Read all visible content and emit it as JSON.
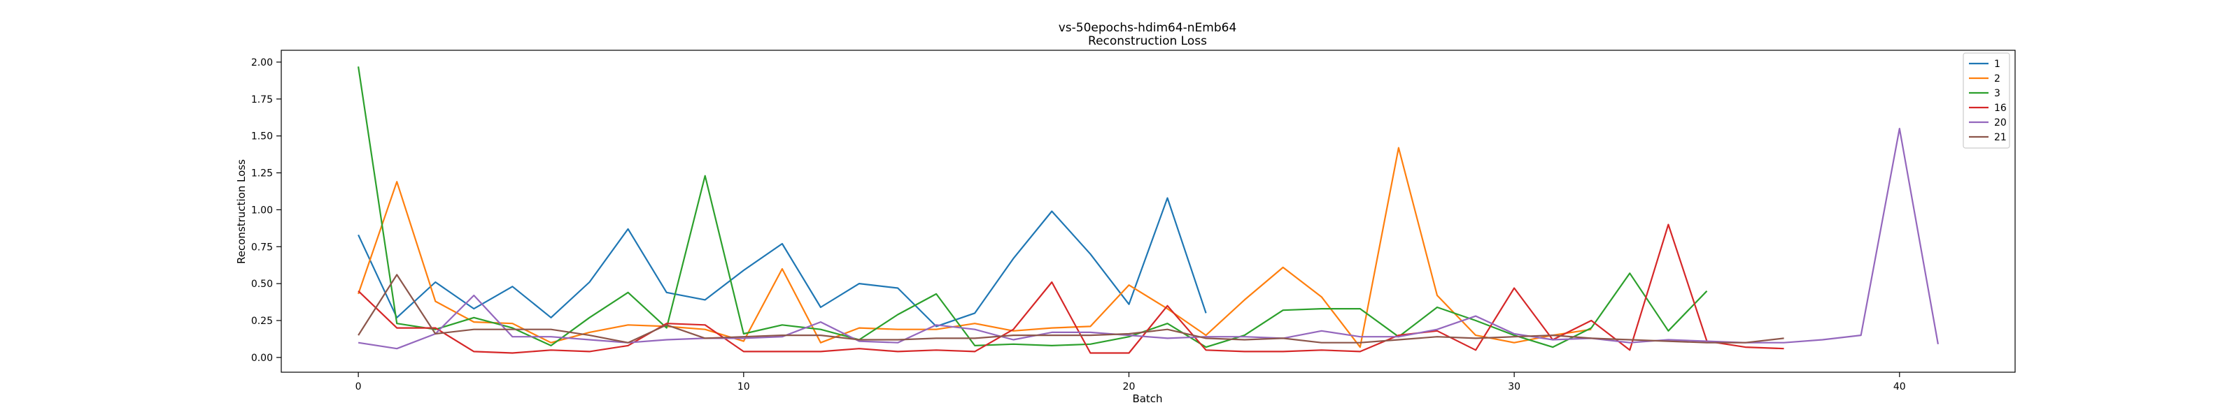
{
  "chart_data": {
    "type": "line",
    "title": "vs-50epochs-hdim64-nEmb64",
    "subtitle": "Reconstruction Loss",
    "xlabel": "Batch",
    "ylabel": "Reconstruction Loss",
    "xlim": [
      -2,
      43
    ],
    "ylim": [
      -0.1,
      2.08
    ],
    "xticks": [
      0,
      10,
      20,
      30,
      40
    ],
    "yticks": [
      0.0,
      0.25,
      0.5,
      0.75,
      1.0,
      1.25,
      1.5,
      1.75,
      2.0
    ],
    "ytick_labels": [
      "0.00",
      "0.25",
      "0.50",
      "0.75",
      "1.00",
      "1.25",
      "1.50",
      "1.75",
      "2.00"
    ],
    "grid": false,
    "legend_position": "top-right",
    "series": [
      {
        "name": "1",
        "color": "#1f77b4",
        "values": [
          0.83,
          0.27,
          0.51,
          0.33,
          0.48,
          0.27,
          0.51,
          0.87,
          0.44,
          0.39,
          0.59,
          0.77,
          0.34,
          0.5,
          0.47,
          0.21,
          0.3,
          0.67,
          0.99,
          0.7,
          0.36,
          1.08,
          0.3
        ]
      },
      {
        "name": "2",
        "color": "#ff7f0e",
        "values": [
          0.43,
          1.19,
          0.38,
          0.24,
          0.23,
          0.1,
          0.17,
          0.22,
          0.21,
          0.19,
          0.11,
          0.6,
          0.1,
          0.2,
          0.19,
          0.19,
          0.23,
          0.18,
          0.2,
          0.21,
          0.49,
          0.33,
          0.15,
          0.39,
          0.61,
          0.41,
          0.07,
          1.42,
          0.42,
          0.15,
          0.1,
          0.15,
          0.19
        ]
      },
      {
        "name": "3",
        "color": "#2ca02c",
        "values": [
          1.97,
          0.23,
          0.19,
          0.27,
          0.2,
          0.08,
          0.27,
          0.44,
          0.2,
          1.23,
          0.16,
          0.22,
          0.19,
          0.12,
          0.29,
          0.43,
          0.08,
          0.09,
          0.08,
          0.09,
          0.14,
          0.23,
          0.07,
          0.15,
          0.32,
          0.33,
          0.33,
          0.14,
          0.34,
          0.25,
          0.15,
          0.07,
          0.2,
          0.57,
          0.18,
          0.45
        ]
      },
      {
        "name": "16",
        "color": "#d62728",
        "values": [
          0.45,
          0.2,
          0.2,
          0.04,
          0.03,
          0.05,
          0.04,
          0.08,
          0.23,
          0.22,
          0.04,
          0.04,
          0.04,
          0.06,
          0.04,
          0.05,
          0.04,
          0.19,
          0.51,
          0.03,
          0.03,
          0.35,
          0.05,
          0.04,
          0.04,
          0.05,
          0.04,
          0.15,
          0.18,
          0.05,
          0.47,
          0.12,
          0.25,
          0.05,
          0.9,
          0.11,
          0.07,
          0.06
        ]
      },
      {
        "name": "20",
        "color": "#9467bd",
        "values": [
          0.1,
          0.06,
          0.16,
          0.42,
          0.14,
          0.14,
          0.12,
          0.1,
          0.12,
          0.13,
          0.13,
          0.14,
          0.24,
          0.11,
          0.1,
          0.22,
          0.19,
          0.12,
          0.17,
          0.17,
          0.15,
          0.13,
          0.14,
          0.14,
          0.13,
          0.18,
          0.14,
          0.14,
          0.19,
          0.28,
          0.16,
          0.12,
          0.13,
          0.1,
          0.12,
          0.11,
          0.1,
          0.1,
          0.12,
          0.15,
          1.55,
          0.09
        ]
      },
      {
        "name": "21",
        "color": "#8c564b",
        "values": [
          0.15,
          0.56,
          0.16,
          0.19,
          0.19,
          0.19,
          0.15,
          0.1,
          0.22,
          0.13,
          0.14,
          0.15,
          0.15,
          0.12,
          0.12,
          0.13,
          0.13,
          0.15,
          0.15,
          0.15,
          0.16,
          0.19,
          0.13,
          0.12,
          0.13,
          0.1,
          0.1,
          0.12,
          0.14,
          0.13,
          0.14,
          0.15,
          0.13,
          0.12,
          0.11,
          0.1,
          0.1,
          0.13
        ]
      }
    ]
  }
}
